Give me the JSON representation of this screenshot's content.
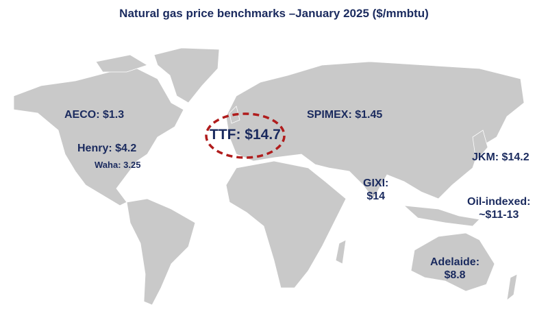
{
  "title": "Natural gas price benchmarks –January 2025 ($/mmbtu)",
  "colors": {
    "land": "#c9c9c9",
    "text": "#1a2a5e",
    "highlight": "#b01c1c"
  },
  "benchmarks": {
    "aeco": "AECO: $1.3",
    "henry": "Henry: $4.2",
    "waha": "Waha: 3.25",
    "ttf": "TTF: $14.7",
    "spimex": "SPIMEX: $1.45",
    "jkm": "JKM: $14.2",
    "gixi_name": "GIXI:",
    "gixi_price": "$14",
    "oil_name": "Oil-indexed:",
    "oil_price": "~$11-13",
    "adelaide_name": "Adelaide:",
    "adelaide_price": "$8.8"
  }
}
